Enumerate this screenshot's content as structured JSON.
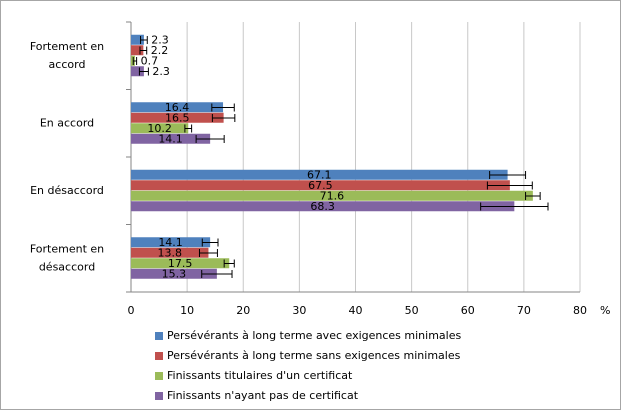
{
  "chart_data": {
    "type": "bar",
    "orientation": "horizontal",
    "categories": [
      "Fortement en accord",
      "En accord",
      "En désaccord",
      "Fortement en désaccord"
    ],
    "series": [
      {
        "name": "Persévérants à long terme avec exigences minimales",
        "color": "#4f81bd",
        "values": [
          2.3,
          16.4,
          67.1,
          14.1
        ],
        "errors": [
          0.6,
          2.0,
          3.2,
          1.4
        ]
      },
      {
        "name": "Persévérants à long terme sans exigences minimales",
        "color": "#c0504d",
        "values": [
          2.2,
          16.5,
          67.5,
          13.8
        ],
        "errors": [
          0.6,
          2.0,
          4.0,
          1.6
        ]
      },
      {
        "name": "Finissants titulaires d'un certificat",
        "color": "#9bbb59",
        "values": [
          0.7,
          10.2,
          71.6,
          17.5
        ],
        "errors": [
          0.3,
          0.6,
          1.3,
          0.9
        ]
      },
      {
        "name": "Finissants n'ayant pas de certificat",
        "color": "#8064a2",
        "values": [
          2.3,
          14.1,
          68.3,
          15.3
        ],
        "errors": [
          0.8,
          2.5,
          6.0,
          2.7
        ]
      }
    ],
    "x_label": "%",
    "xlim": [
      0,
      80
    ],
    "xticks": [
      0,
      10,
      20,
      30,
      40,
      50,
      60,
      70,
      80
    ],
    "grid": true,
    "legend": "bottom"
  }
}
